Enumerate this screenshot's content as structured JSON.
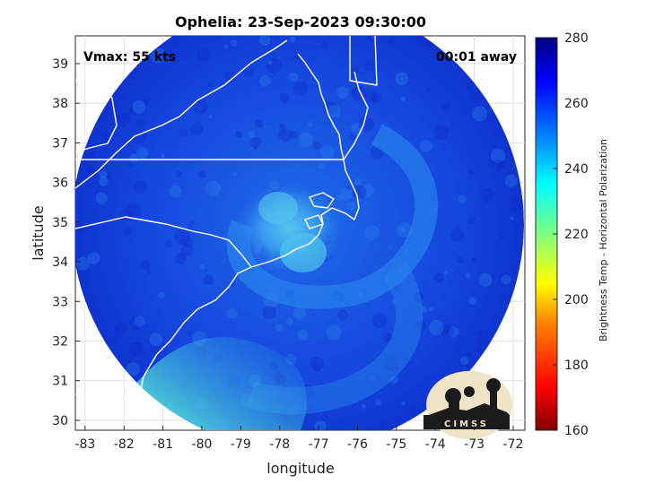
{
  "title": "Ophelia: 23-Sep-2023 09:30:00",
  "vmax_label": "Vmax: 55 kts",
  "away_label": "00:01 away",
  "logo_text": "CIMSS",
  "colors": {
    "land_line": "#ffffff",
    "storm_core": "#2a8ff0",
    "cold_band": "#5bd6c8",
    "swath": "#0f2fd6"
  },
  "chart_data": {
    "type": "heatmap",
    "xlabel": "longitude",
    "ylabel": "latitude",
    "x_ticks": [
      -83,
      -82,
      -81,
      -80,
      -79,
      -78,
      -77,
      -76,
      -75,
      -74,
      -73,
      -72
    ],
    "y_ticks": [
      30,
      31,
      32,
      33,
      34,
      35,
      36,
      37,
      38,
      39
    ],
    "xlim": [
      -83.25,
      -71.7
    ],
    "ylim": [
      29.75,
      39.7
    ],
    "colorbar": {
      "label": "Brightness Temp - Horizontal Polarization",
      "ticks": [
        160,
        180,
        200,
        220,
        240,
        260,
        280
      ],
      "range": [
        160,
        280
      ]
    }
  }
}
